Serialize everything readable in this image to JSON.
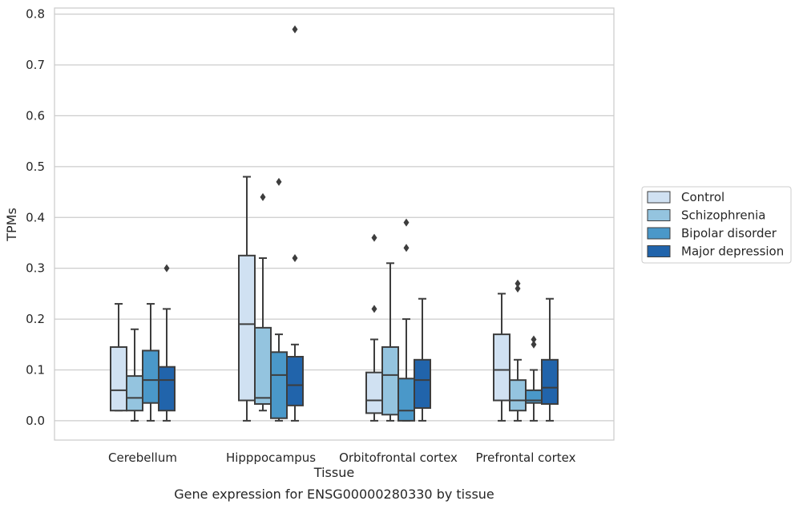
{
  "chart_data": {
    "type": "boxplot",
    "title": "",
    "caption": "Gene expression for ENSG00000280330 by tissue",
    "xlabel": "Tissue",
    "ylabel": "TPMs",
    "ylim": [
      -0.038,
      0.812
    ],
    "yticks": [
      "0.0",
      "0.1",
      "0.2",
      "0.3",
      "0.4",
      "0.5",
      "0.6",
      "0.7",
      "0.8"
    ],
    "categories": [
      "Cerebellum",
      "Hipppocampus",
      "Orbitofrontal cortex",
      "Prefrontal cortex"
    ],
    "grid": "horizontal",
    "legend_position": "right",
    "colors": {
      "Control": "#d0e1f2",
      "Schizophrenia": "#94c4df",
      "Bipolar disorder": "#4a98c9",
      "Major depression": "#2164ab",
      "line": "#3d3d3d",
      "grid": "#cccccc"
    },
    "series": [
      {
        "name": "Control",
        "boxes": [
          {
            "whislo": 0.02,
            "q1": 0.02,
            "med": 0.06,
            "q3": 0.145,
            "whishi": 0.23,
            "fliers": []
          },
          {
            "whislo": 0.0,
            "q1": 0.04,
            "med": 0.19,
            "q3": 0.325,
            "whishi": 0.48,
            "fliers": []
          },
          {
            "whislo": 0.0,
            "q1": 0.015,
            "med": 0.04,
            "q3": 0.095,
            "whishi": 0.16,
            "fliers": [
              0.22,
              0.36
            ]
          },
          {
            "whislo": 0.0,
            "q1": 0.04,
            "med": 0.1,
            "q3": 0.17,
            "whishi": 0.25,
            "fliers": []
          }
        ]
      },
      {
        "name": "Schizophrenia",
        "boxes": [
          {
            "whislo": 0.0,
            "q1": 0.02,
            "med": 0.045,
            "q3": 0.088,
            "whishi": 0.18,
            "fliers": []
          },
          {
            "whislo": 0.02,
            "q1": 0.033,
            "med": 0.045,
            "q3": 0.183,
            "whishi": 0.32,
            "fliers": [
              0.44
            ]
          },
          {
            "whislo": 0.0,
            "q1": 0.012,
            "med": 0.09,
            "q3": 0.145,
            "whishi": 0.31,
            "fliers": []
          },
          {
            "whislo": 0.0,
            "q1": 0.02,
            "med": 0.04,
            "q3": 0.08,
            "whishi": 0.12,
            "fliers": [
              0.26,
              0.27
            ]
          }
        ]
      },
      {
        "name": "Bipolar disorder",
        "boxes": [
          {
            "whislo": 0.0,
            "q1": 0.035,
            "med": 0.08,
            "q3": 0.138,
            "whishi": 0.23,
            "fliers": []
          },
          {
            "whislo": 0.0,
            "q1": 0.005,
            "med": 0.09,
            "q3": 0.135,
            "whishi": 0.17,
            "fliers": [
              0.47
            ]
          },
          {
            "whislo": 0.0,
            "q1": 0.0,
            "med": 0.02,
            "q3": 0.083,
            "whishi": 0.2,
            "fliers": [
              0.34,
              0.39
            ]
          },
          {
            "whislo": 0.0,
            "q1": 0.035,
            "med": 0.04,
            "q3": 0.06,
            "whishi": 0.1,
            "fliers": [
              0.15,
              0.16
            ]
          }
        ]
      },
      {
        "name": "Major depression",
        "boxes": [
          {
            "whislo": 0.0,
            "q1": 0.02,
            "med": 0.08,
            "q3": 0.106,
            "whishi": 0.22,
            "fliers": [
              0.3
            ]
          },
          {
            "whislo": 0.0,
            "q1": 0.03,
            "med": 0.07,
            "q3": 0.126,
            "whishi": 0.15,
            "fliers": [
              0.32,
              0.77
            ]
          },
          {
            "whislo": 0.0,
            "q1": 0.025,
            "med": 0.08,
            "q3": 0.12,
            "whishi": 0.24,
            "fliers": []
          },
          {
            "whislo": 0.0,
            "q1": 0.033,
            "med": 0.065,
            "q3": 0.12,
            "whishi": 0.24,
            "fliers": []
          }
        ]
      }
    ]
  }
}
